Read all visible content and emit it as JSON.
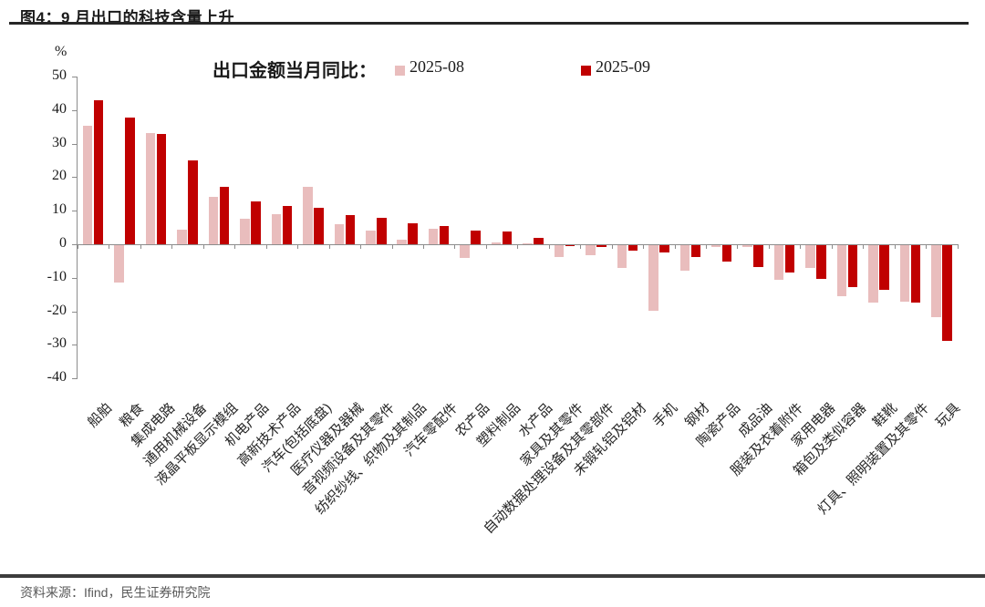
{
  "header": {
    "title": "图4：9 月出口的科技含量上升"
  },
  "footer": {
    "source": "资料来源：Ifind，民生证券研究院"
  },
  "colors": {
    "axis": "#8c8c8c",
    "series_aug": "#e9bdbd",
    "series_sep": "#c00000",
    "title_rule": "#262626",
    "footer_rule": "#3d3d3d",
    "footer_text": "#595959"
  },
  "chart_data": {
    "type": "bar",
    "title": "出口金额当月同比：",
    "unit_label": "%",
    "ylabel": "%",
    "xlabel": "",
    "ylim": [
      -40,
      50
    ],
    "yticks": [
      50,
      40,
      30,
      20,
      10,
      0,
      -10,
      -20,
      -30,
      -40
    ],
    "grid": false,
    "legend_position": "top",
    "categories": [
      "船舶",
      "粮食",
      "集成电路",
      "通用机械设备",
      "液晶平板显示模组",
      "机电产品",
      "高新技术产品",
      "汽车(包括底盘)",
      "医疗仪器及器械",
      "音视频设备及其零件",
      "纺织纱线、织物及其制品",
      "汽车零配件",
      "农产品",
      "塑料制品",
      "水产品",
      "家具及其零件",
      "自动数据处理设备及其零部件",
      "未锻轧铝及铝材",
      "手机",
      "钢材",
      "陶瓷产品",
      "成品油",
      "服装及衣着附件",
      "家用电器",
      "箱包及类似容器",
      "鞋靴",
      "灯具、照明装置及其零件",
      "玩具"
    ],
    "series": [
      {
        "name": "2025-08",
        "color": "#e9bdbd",
        "values": [
          35.2,
          -11.1,
          33.2,
          4.3,
          14.0,
          7.7,
          8.9,
          17.2,
          6.1,
          4.0,
          1.4,
          4.7,
          -3.9,
          0.6,
          0.2,
          -3.4,
          -3.0,
          -6.8,
          -19.6,
          -7.7,
          -0.5,
          -0.5,
          -10.4,
          -6.8,
          -15.1,
          -17.2,
          -16.8,
          -21.6
        ]
      },
      {
        "name": "2025-09",
        "color": "#c00000",
        "values": [
          42.9,
          37.7,
          32.9,
          25.1,
          17.2,
          12.8,
          11.5,
          11.0,
          8.8,
          7.9,
          6.3,
          5.3,
          4.0,
          3.8,
          1.8,
          -0.4,
          -0.5,
          -1.6,
          -2.3,
          -3.4,
          -4.8,
          -6.5,
          -8.1,
          -10.0,
          -12.5,
          -13.4,
          -17.0,
          -28.5
        ]
      }
    ]
  }
}
